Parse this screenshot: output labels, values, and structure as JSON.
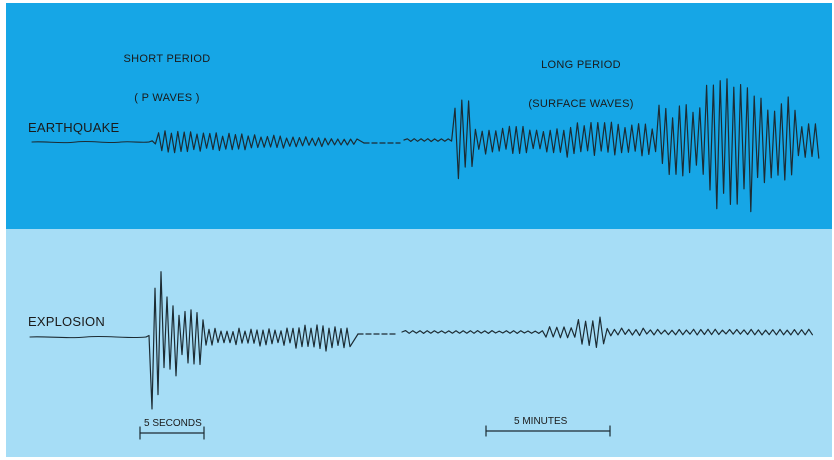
{
  "headings": {
    "short_period_line1": "SHORT PERIOD",
    "short_period_line2": "( P WAVES )",
    "long_period_line1": "LONG PERIOD",
    "long_period_line2": "(SURFACE WAVES)"
  },
  "rows": {
    "earthquake": "EARTHQUAKE",
    "explosion": "EXPLOSION"
  },
  "scales": {
    "short": "5 SECONDS",
    "long": "5 MINUTES"
  },
  "colors": {
    "earthquake_panel": "#16a6e6",
    "explosion_panel": "#a6ddf6",
    "trace": "#1c2b33"
  }
}
